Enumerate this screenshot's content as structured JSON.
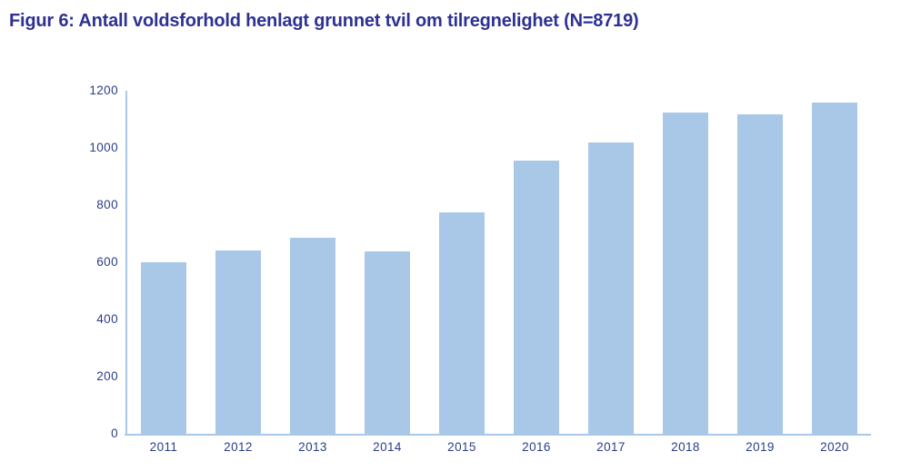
{
  "title": "Figur 6: Antall voldsforhold henlagt grunnet tvil om tilregnelighet (N=8719)",
  "colors": {
    "background": "#ffffff",
    "bar": "#a9c8e8",
    "axis": "#a9c8e8",
    "title": "#2e3192",
    "tick": "#2b3e87"
  },
  "chart_data": {
    "type": "bar",
    "title": "Figur 6: Antall voldsforhold henlagt grunnet tvil om tilregnelighet (N=8719)",
    "categories": [
      "2011",
      "2012",
      "2013",
      "2014",
      "2015",
      "2016",
      "2017",
      "2018",
      "2019",
      "2020"
    ],
    "values": [
      600,
      642,
      687,
      637,
      775,
      957,
      1019,
      1125,
      1119,
      1158
    ],
    "total_n": 8719,
    "xlabel": "",
    "ylabel": "",
    "ylim": [
      0,
      1200
    ],
    "yticks": [
      0,
      200,
      400,
      600,
      800,
      1000,
      1200
    ],
    "grid": false,
    "legend_position": "none",
    "bar_color": "#a9c8e8"
  }
}
